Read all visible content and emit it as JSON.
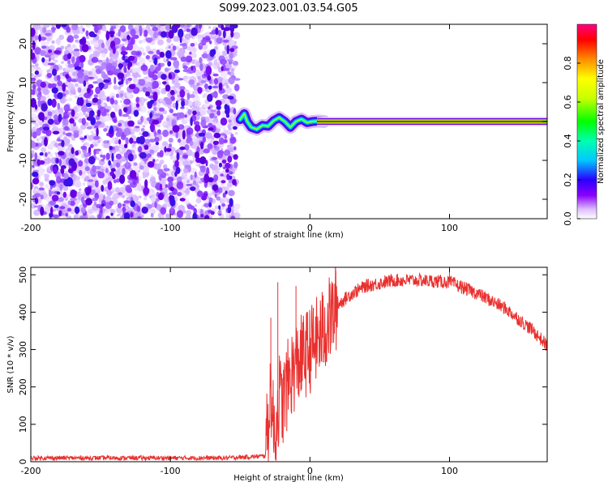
{
  "title": "S099.2023.001.03.54.G05",
  "colors": {
    "snr_line": "#e8302e",
    "axis": "#000000",
    "background": "#ffffff"
  },
  "chart_data": [
    {
      "type": "heatmap",
      "name": "spectrogram",
      "xlabel": "Height of straight line (km)",
      "ylabel": "Frequency (Hz)",
      "xlim": [
        -200,
        170
      ],
      "ylim": [
        -25,
        25
      ],
      "x_ticks": [
        -200,
        -100,
        0,
        100
      ],
      "y_ticks": [
        -20,
        -10,
        0,
        10,
        20
      ],
      "grid": false,
      "noise_region_x": [
        -200,
        -52
      ],
      "tracking_segment": [
        {
          "x": -50,
          "y": 0.5
        },
        {
          "x": -47,
          "y": 2.0
        },
        {
          "x": -45,
          "y": 0.0
        },
        {
          "x": -42,
          "y": -1.5
        },
        {
          "x": -38,
          "y": -2.0
        },
        {
          "x": -34,
          "y": -1.0
        },
        {
          "x": -30,
          "y": -1.2
        },
        {
          "x": -26,
          "y": 0.2
        },
        {
          "x": -22,
          "y": 1.0
        },
        {
          "x": -18,
          "y": 0.0
        },
        {
          "x": -14,
          "y": -1.5
        },
        {
          "x": -10,
          "y": 0.0
        },
        {
          "x": -6,
          "y": 0.6
        },
        {
          "x": -2,
          "y": -0.3
        },
        {
          "x": 2,
          "y": 0.0
        },
        {
          "x": 6,
          "y": 0.1
        },
        {
          "x": 10,
          "y": 0.0
        }
      ],
      "carrier_line": {
        "x_start": 5,
        "x_end": 170,
        "y": 0
      }
    },
    {
      "type": "line",
      "name": "snr",
      "xlabel": "Height of straight line (km)",
      "ylabel": "SNR (10 * v/v)",
      "xlim": [
        -200,
        170
      ],
      "ylim": [
        0,
        520
      ],
      "x_ticks": [
        -200,
        -100,
        0,
        100
      ],
      "y_ticks": [
        0,
        100,
        200,
        300,
        400,
        500
      ],
      "grid": false,
      "envelope": [
        {
          "x": -200,
          "y": 10
        },
        {
          "x": -150,
          "y": 10
        },
        {
          "x": -100,
          "y": 10
        },
        {
          "x": -60,
          "y": 10
        },
        {
          "x": -32,
          "y": 15
        },
        {
          "x": -30,
          "y": 100
        },
        {
          "x": -28,
          "y": 200
        },
        {
          "x": -26,
          "y": 80
        },
        {
          "x": -24,
          "y": 100
        },
        {
          "x": -22,
          "y": 180
        },
        {
          "x": -20,
          "y": 150
        },
        {
          "x": -15,
          "y": 220
        },
        {
          "x": -10,
          "y": 260
        },
        {
          "x": -5,
          "y": 280
        },
        {
          "x": 0,
          "y": 300
        },
        {
          "x": 10,
          "y": 350
        },
        {
          "x": 20,
          "y": 420
        },
        {
          "x": 30,
          "y": 450
        },
        {
          "x": 40,
          "y": 470
        },
        {
          "x": 60,
          "y": 485
        },
        {
          "x": 80,
          "y": 485
        },
        {
          "x": 100,
          "y": 480
        },
        {
          "x": 120,
          "y": 450
        },
        {
          "x": 140,
          "y": 410
        },
        {
          "x": 160,
          "y": 350
        },
        {
          "x": 170,
          "y": 310
        }
      ],
      "spikes": [
        {
          "x": -28,
          "y": 385
        },
        {
          "x": -23,
          "y": 480
        },
        {
          "x": -10,
          "y": 470
        },
        {
          "x": 100,
          "y": 520
        }
      ]
    }
  ],
  "colorbar": {
    "label": "Normalized spectral amplitude",
    "range": [
      0,
      1
    ],
    "ticks": [
      0.0,
      0.2,
      0.4,
      0.6,
      0.8
    ],
    "tick_labels": [
      "0.0",
      "0.2",
      "0.4",
      "0.6",
      "0.8"
    ]
  }
}
